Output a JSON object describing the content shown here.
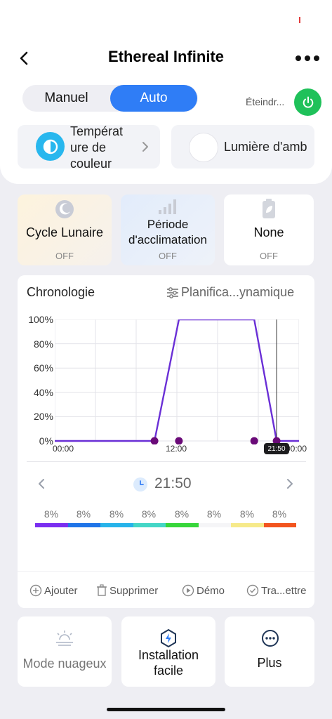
{
  "header": {
    "title": "Ethereal Infinite"
  },
  "mode": {
    "manual_label": "Manuel",
    "auto_label": "Auto",
    "active": "Auto"
  },
  "power": {
    "label": "Éteindr..."
  },
  "quick": {
    "temperature_label": "Températ\nure de\ncouleur",
    "ambient_label": "Lumière d'amb"
  },
  "features": [
    {
      "label": "Cycle Lunaire",
      "status": "OFF",
      "icon": "moon-icon"
    },
    {
      "label": "Période d'acclimatation",
      "status": "OFF",
      "icon": "signal-bars-icon"
    },
    {
      "label": "None",
      "status": "OFF",
      "icon": "battery-leaf-icon"
    }
  ],
  "chronology": {
    "title": "Chronologie",
    "schedule_label": "Planifica...ynamique",
    "selected_time": "21:50",
    "tooltip": "21:50"
  },
  "chart_data": {
    "type": "line",
    "x_unit": "hours",
    "x_ticks": [
      "00:00",
      "12:00",
      "00:00"
    ],
    "y_ticks": [
      "0%",
      "20%",
      "40%",
      "60%",
      "80%",
      "100%"
    ],
    "ylim": [
      0,
      100
    ],
    "xlim": [
      0,
      24
    ],
    "series": [
      {
        "points": [
          [
            0,
            0
          ],
          [
            9.8,
            0
          ],
          [
            12.2,
            100
          ],
          [
            19.6,
            100
          ],
          [
            21.8,
            0
          ],
          [
            24,
            0
          ]
        ],
        "color": "#6a2fd6"
      }
    ],
    "markers": [
      9.8,
      12.2,
      19.6,
      21.8
    ],
    "cursor_hour": 21.8
  },
  "channels": [
    {
      "pct": "8%",
      "color": "#7a2ef0"
    },
    {
      "pct": "8%",
      "color": "#1f74e8"
    },
    {
      "pct": "8%",
      "color": "#26b3ea"
    },
    {
      "pct": "8%",
      "color": "#44d6c6"
    },
    {
      "pct": "8%",
      "color": "#37d63a"
    },
    {
      "pct": "8%",
      "color": "#f5f5f7"
    },
    {
      "pct": "8%",
      "color": "#f6ea8a"
    },
    {
      "pct": "8%",
      "color": "#f2541e"
    }
  ],
  "actions": {
    "add": "Ajouter",
    "delete": "Supprimer",
    "demo": "Démo",
    "transmit": "Tra...ettre"
  },
  "bottom": [
    {
      "label": "Mode nuageux",
      "icon": "cloudy-sun-icon"
    },
    {
      "label": "Installation\nfacile",
      "icon": "lightning-shield-icon"
    },
    {
      "label": "Plus",
      "icon": "more-circle-icon"
    }
  ],
  "colors": {
    "accent": "#2f7df6",
    "power": "#1fc15a",
    "chart_line": "#6a2fd6",
    "marker": "#6a0a78"
  }
}
